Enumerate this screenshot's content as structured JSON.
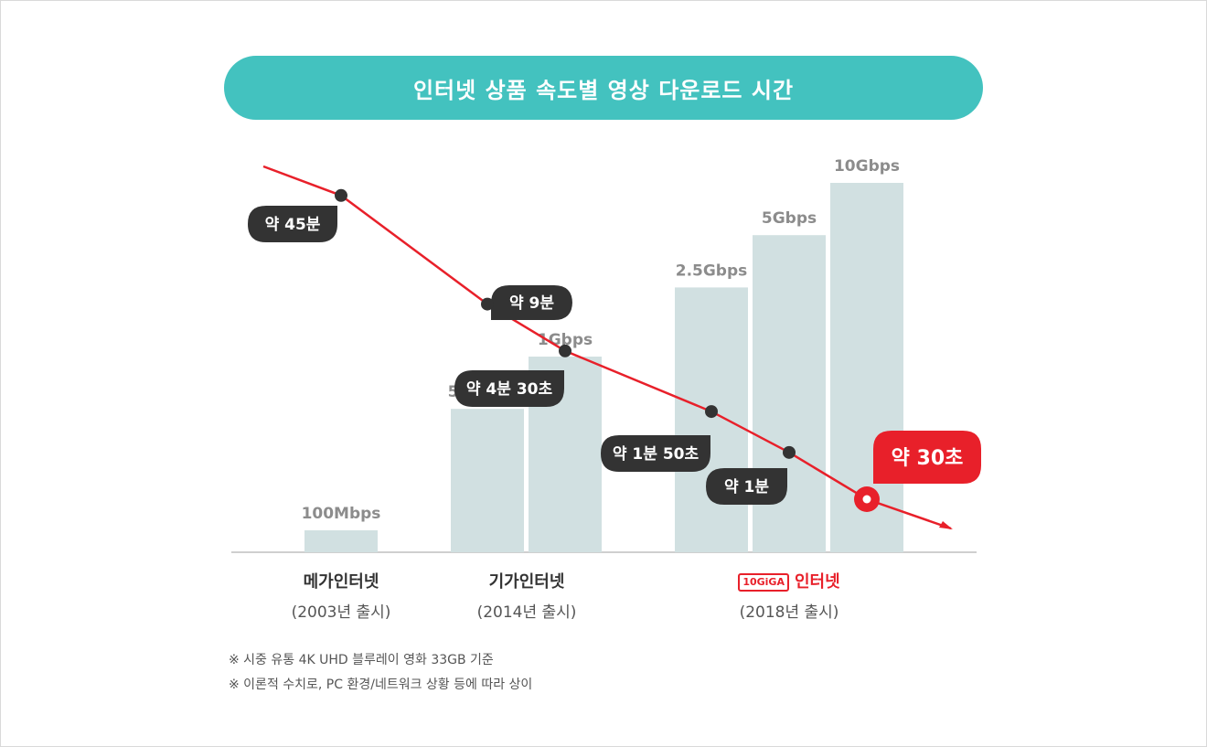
{
  "title": "인터넷 상품 속도별 영상 다운로드 시간",
  "chart_data": {
    "type": "bar",
    "speed_bars": {
      "categories": [
        "100Mbps",
        "500Mbps",
        "1Gbps",
        "2.5Gbps",
        "5Gbps",
        "10Gbps"
      ],
      "values": [
        0.1,
        0.5,
        1,
        2.5,
        5,
        10
      ],
      "unit": "Gbps"
    },
    "download_time_line": {
      "points": [
        {
          "label": "약 45분",
          "seconds": 2700
        },
        {
          "label": "약 9분",
          "seconds": 540
        },
        {
          "label": "약 4분 30초",
          "seconds": 270
        },
        {
          "label": "약 1분 50초",
          "seconds": 110
        },
        {
          "label": "약 1분",
          "seconds": 60
        },
        {
          "label": "약 30초",
          "seconds": 30
        }
      ]
    },
    "groups": [
      {
        "name": "메가인터넷",
        "sub": "(2003년 출시)"
      },
      {
        "name": "기가인터넷",
        "sub": "(2014년 출시)"
      },
      {
        "logo": "10GiGA",
        "name": "인터넷",
        "sub": "(2018년 출시)"
      }
    ],
    "colors": {
      "title_bg": "#43c2bf",
      "bar": "#d1e0e1",
      "line": "#e8202a",
      "bubble": "#333333",
      "highlight": "#e8202a"
    }
  },
  "notes": [
    "※ 시중 유통 4K UHD 블루레이 영화 33GB 기준",
    "※ 이론적 수치로, PC 환경/네트워크 상황 등에 따라 상이"
  ]
}
